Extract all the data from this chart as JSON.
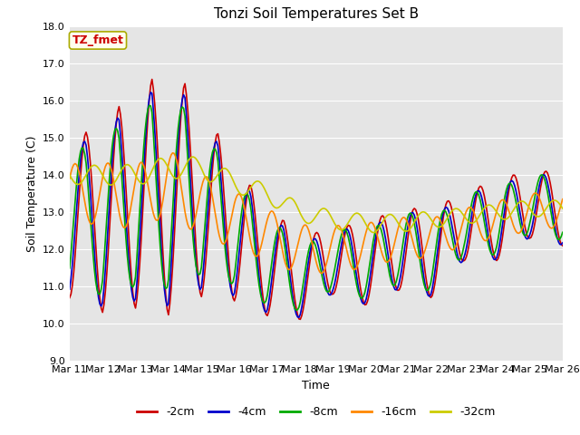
{
  "title": "Tonzi Soil Temperatures Set B",
  "xlabel": "Time",
  "ylabel": "Soil Temperature (C)",
  "ylim": [
    9.0,
    18.0
  ],
  "yticks": [
    9.0,
    10.0,
    11.0,
    12.0,
    13.0,
    14.0,
    15.0,
    16.0,
    17.0,
    18.0
  ],
  "xtick_labels": [
    "Mar 11",
    "Mar 12",
    "Mar 13",
    "Mar 14",
    "Mar 15",
    "Mar 16",
    "Mar 17",
    "Mar 18",
    "Mar 19",
    "Mar 20",
    "Mar 21",
    "Mar 22",
    "Mar 23",
    "Mar 24",
    "Mar 25",
    "Mar 26"
  ],
  "annotation_text": "TZ_fmet",
  "annotation_color": "#cc0000",
  "annotation_bg": "#ffffee",
  "annotation_border": "#aaaa00",
  "series": {
    "-2cm": {
      "color": "#cc0000",
      "lw": 1.2
    },
    "-4cm": {
      "color": "#0000cc",
      "lw": 1.2
    },
    "-8cm": {
      "color": "#00aa00",
      "lw": 1.2
    },
    "-16cm": {
      "color": "#ff8800",
      "lw": 1.2
    },
    "-32cm": {
      "color": "#cccc00",
      "lw": 1.2
    }
  },
  "legend_order": [
    "-2cm",
    "-4cm",
    "-8cm",
    "-16cm",
    "-32cm"
  ],
  "background_color": "#ffffff",
  "plot_bg_color": "#e5e5e5",
  "grid_color": "#ffffff",
  "title_fontsize": 11,
  "axis_fontsize": 9,
  "tick_fontsize": 8
}
